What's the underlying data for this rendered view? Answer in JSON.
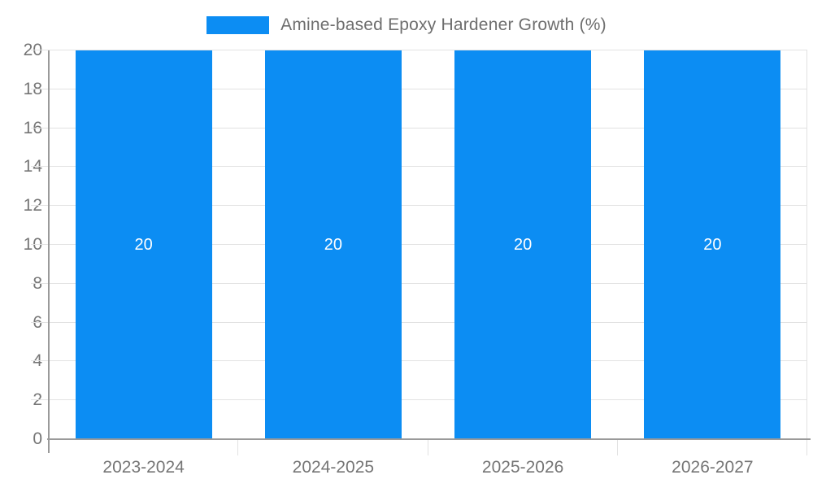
{
  "chart_data": {
    "type": "bar",
    "title": "Amine-based Epoxy Hardener Growth (%)",
    "legend_position": "top",
    "categories": [
      "2023-2024",
      "2024-2025",
      "2025-2026",
      "2026-2027"
    ],
    "series": [
      {
        "name": "Amine-based Epoxy Hardener Growth (%)",
        "values": [
          20,
          20,
          20,
          20
        ]
      }
    ],
    "bar_value_labels": [
      "20",
      "20",
      "20",
      "20"
    ],
    "xlabel": "",
    "ylabel": "",
    "ylim": [
      0,
      20
    ],
    "ytick_step": 2,
    "ytick_labels": [
      "0",
      "2",
      "4",
      "6",
      "8",
      "10",
      "12",
      "14",
      "16",
      "18",
      "20"
    ],
    "grid": true,
    "colors": {
      "bar": "#0c8df3",
      "bar_label": "#ffffff",
      "axis_line": "#9a9a9a",
      "grid_line": "#e2e2e2",
      "tick_label": "#757575",
      "title_text": "#6e6e6e",
      "background": "#ffffff"
    }
  }
}
